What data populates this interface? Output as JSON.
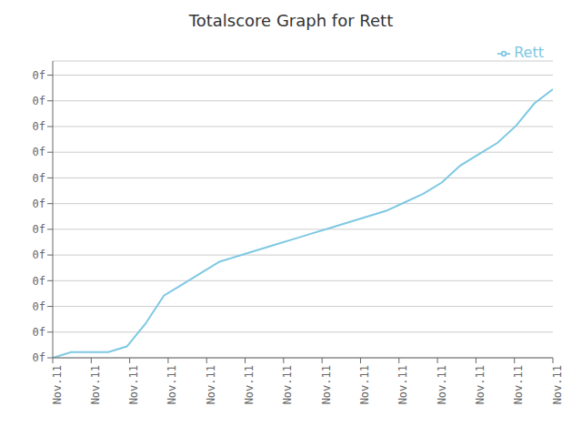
{
  "chart_data": {
    "type": "line",
    "title": "Totalscore Graph for Rett",
    "x": [
      0,
      1,
      2,
      3,
      4,
      5,
      6,
      7,
      8,
      9,
      10,
      11,
      12,
      13,
      14,
      15,
      16,
      17,
      18,
      19,
      20,
      21,
      22,
      23,
      24,
      25,
      26,
      27
    ],
    "series": [
      {
        "name": "Rett",
        "color": "#7ec8e3",
        "values": [
          0.0,
          0.02,
          0.02,
          0.02,
          0.04,
          0.12,
          0.22,
          0.26,
          0.3,
          0.34,
          0.36,
          0.38,
          0.4,
          0.42,
          0.44,
          0.46,
          0.48,
          0.5,
          0.52,
          0.55,
          0.58,
          0.62,
          0.68,
          0.72,
          0.76,
          0.82,
          0.9,
          0.95
        ]
      }
    ],
    "xlim": [
      0,
      27
    ],
    "xticks": [
      {
        "value": 0,
        "label": "Nov.11"
      },
      {
        "value": 2.076923076923077,
        "label": "Nov.11"
      },
      {
        "value": 4.153846153846154,
        "label": "Nov.11"
      },
      {
        "value": 6.230769230769231,
        "label": "Nov.11"
      },
      {
        "value": 8.307692307692308,
        "label": "Nov.11"
      },
      {
        "value": 10.384615384615385,
        "label": "Nov.11"
      },
      {
        "value": 12.461538461538462,
        "label": "Nov.11"
      },
      {
        "value": 14.538461538461538,
        "label": "Nov.11"
      },
      {
        "value": 16.615384615384617,
        "label": "Nov.11"
      },
      {
        "value": 18.692307692307693,
        "label": "Nov.11"
      },
      {
        "value": 20.76923076923077,
        "label": "Nov.11"
      },
      {
        "value": 22.846153846153847,
        "label": "Nov.11"
      },
      {
        "value": 24.923076923076923,
        "label": "Nov.11"
      },
      {
        "value": 27,
        "label": "Nov.11"
      }
    ],
    "ylim": [
      0,
      1.05
    ],
    "yticks": [
      {
        "value": 0,
        "label": "0f"
      },
      {
        "value": 0.09090909090909091,
        "label": "0f"
      },
      {
        "value": 0.18181818181818182,
        "label": "0f"
      },
      {
        "value": 0.2727272727272727,
        "label": "0f"
      },
      {
        "value": 0.36363636363636365,
        "label": "0f"
      },
      {
        "value": 0.45454545454545453,
        "label": "0f"
      },
      {
        "value": 0.5454545454545454,
        "label": "0f"
      },
      {
        "value": 0.6363636363636364,
        "label": "0f"
      },
      {
        "value": 0.7272727272727273,
        "label": "0f"
      },
      {
        "value": 0.8181818181818182,
        "label": "0f"
      },
      {
        "value": 0.9090909090909091,
        "label": "0f"
      },
      {
        "value": 1,
        "label": "0f"
      }
    ],
    "grid": true,
    "legend": "upper right"
  }
}
